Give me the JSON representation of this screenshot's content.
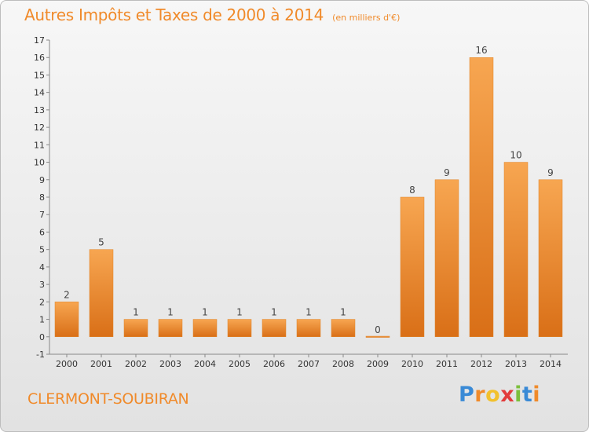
{
  "chart_data": {
    "type": "bar",
    "title": "Autres Impôts et Taxes de 2000 à 2014",
    "unit_note": "(en milliers d'€)",
    "categories": [
      "2000",
      "2001",
      "2002",
      "2003",
      "2004",
      "2005",
      "2006",
      "2007",
      "2008",
      "2009",
      "2010",
      "2011",
      "2012",
      "2013",
      "2014"
    ],
    "values": [
      2,
      5,
      1,
      1,
      1,
      1,
      1,
      1,
      1,
      0,
      8,
      9,
      16,
      10,
      9
    ],
    "ylim": [
      -1,
      17
    ],
    "yticks": [
      -1,
      0,
      1,
      2,
      3,
      4,
      5,
      6,
      7,
      8,
      9,
      10,
      11,
      12,
      13,
      14,
      15,
      16,
      17
    ],
    "grid": false,
    "bar_color": "#f08a2a"
  },
  "footer": {
    "commune": "CLERMONT-SOUBIRAN",
    "brand_letters": [
      {
        "ch": "P",
        "color": "#3a8ad6"
      },
      {
        "ch": "r",
        "color": "#f08a2a"
      },
      {
        "ch": "o",
        "color": "#f2c12e"
      },
      {
        "ch": "x",
        "color": "#e23c3c"
      },
      {
        "ch": "i",
        "color": "#7cbf3c"
      },
      {
        "ch": "t",
        "color": "#3a8ad6"
      },
      {
        "ch": "i",
        "color": "#f08a2a"
      }
    ]
  }
}
